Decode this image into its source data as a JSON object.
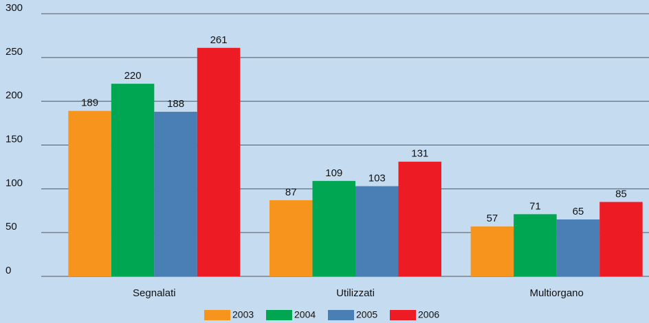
{
  "chart_data": {
    "type": "bar",
    "categories": [
      "Segnalati",
      "Utilizzati",
      "Multiorgano"
    ],
    "series": [
      {
        "name": "2003",
        "color": "#f7941d",
        "values": [
          189,
          87,
          57
        ]
      },
      {
        "name": "2004",
        "color": "#00a651",
        "values": [
          220,
          109,
          71
        ]
      },
      {
        "name": "2005",
        "color": "#4a7fb5",
        "values": [
          188,
          103,
          65
        ]
      },
      {
        "name": "2006",
        "color": "#ed1c24",
        "values": [
          261,
          131,
          85
        ]
      }
    ],
    "ylim": [
      0,
      300
    ],
    "yticks": [
      0,
      50,
      100,
      150,
      200,
      250,
      300
    ],
    "grid": true,
    "legend": "bottom"
  }
}
